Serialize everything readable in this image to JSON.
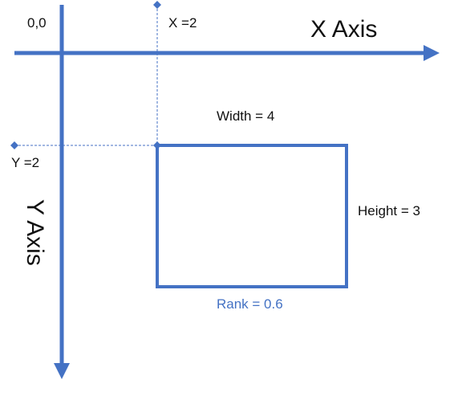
{
  "colors": {
    "axis": "#4472c4",
    "text": "#111111",
    "accent_text": "#4472c4"
  },
  "labels": {
    "origin": "0,0",
    "x_marker": "X =2",
    "x_axis_title": "X Axis",
    "width": "Width = 4",
    "y_marker": "Y =2",
    "height": "Height = 3",
    "y_axis_title": "Y Axis",
    "rank": "Rank = 0.6"
  },
  "rectangle": {
    "x": 2,
    "y": 2,
    "width": 4,
    "height": 3,
    "rank": 0.6
  }
}
